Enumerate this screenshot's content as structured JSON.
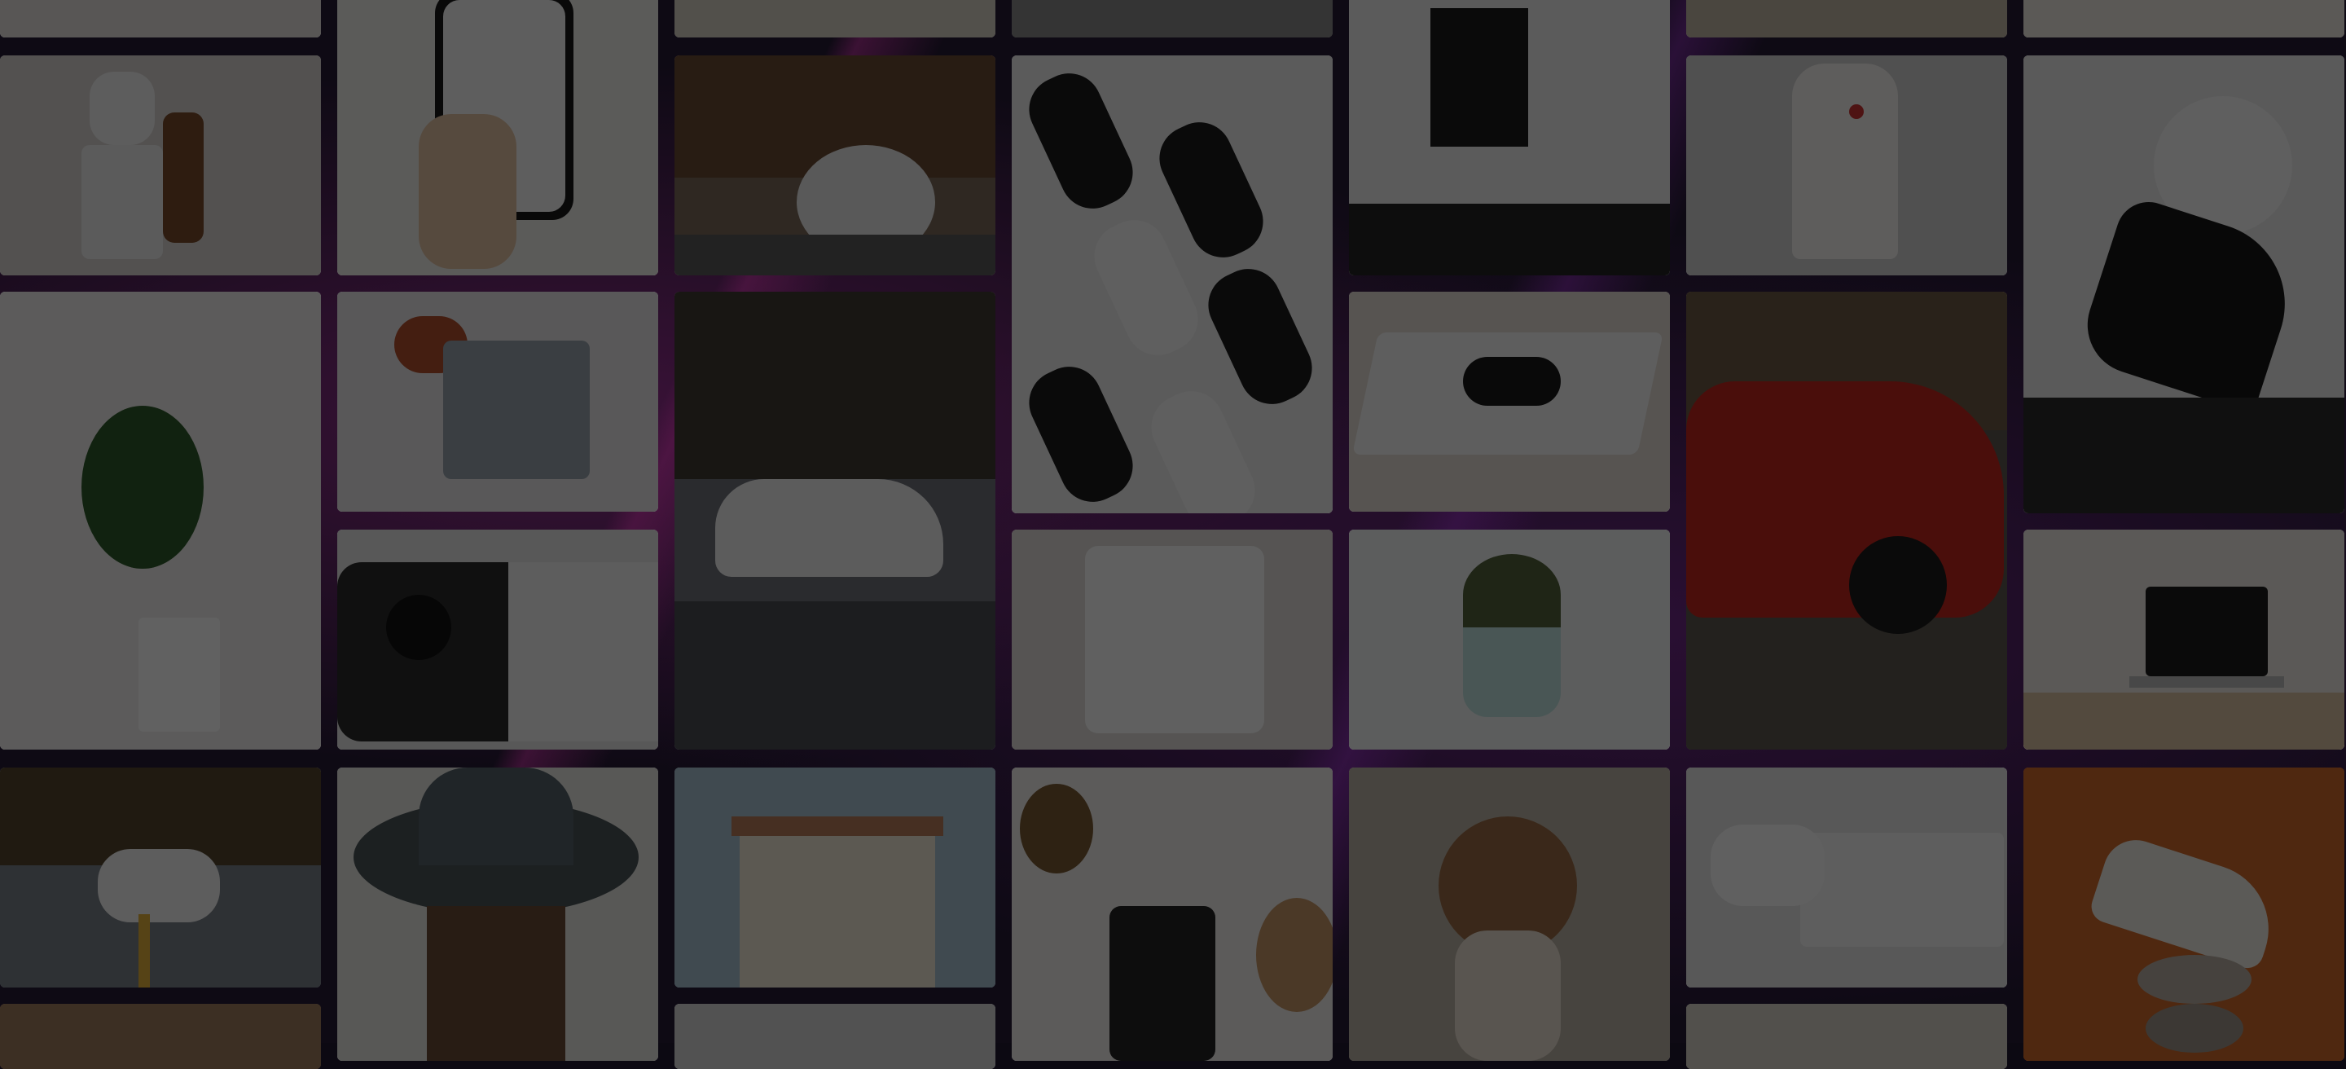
{
  "page": {
    "description": ""
  },
  "colors": {
    "background": "#0e0a14",
    "overlay": "rgba(0,0,0,0.62)"
  }
}
